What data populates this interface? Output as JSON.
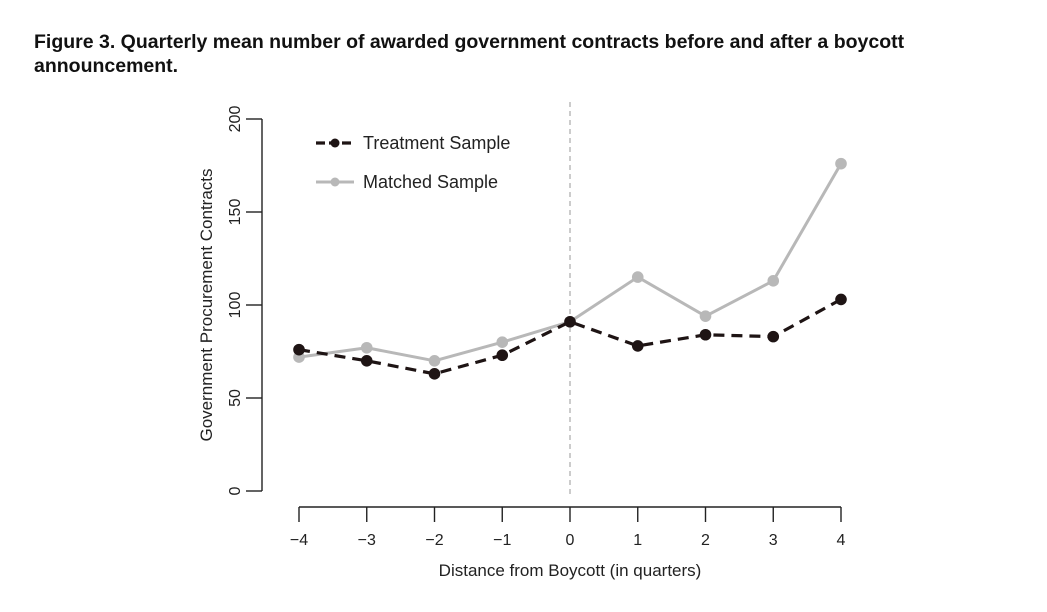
{
  "figure": {
    "title": "Figure 3.  Quarterly mean number of awarded government contracts before and after a boycott announcement."
  },
  "chart_data": {
    "type": "line",
    "title": "Figure 3.  Quarterly mean number of awarded government contracts before and after a boycott announcement.",
    "xlabel": "Distance from Boycott (in quarters)",
    "ylabel": "Government Procurement Contracts",
    "x": [
      -4,
      -3,
      -2,
      -1,
      0,
      1,
      2,
      3,
      4
    ],
    "x_tick_labels": [
      "−4",
      "−3",
      "−2",
      "−1",
      "0",
      "1",
      "2",
      "3",
      "4"
    ],
    "y_ticks": [
      0,
      50,
      100,
      150,
      200
    ],
    "y_tick_labels": [
      "0",
      "50",
      "100",
      "150",
      "200"
    ],
    "xlim": [
      -4,
      4
    ],
    "ylim": [
      0,
      200
    ],
    "grid": false,
    "vertical_reference_line_x": 0,
    "legend_position": "top-left",
    "series": [
      {
        "name": "Treatment Sample",
        "values": [
          76,
          70,
          63,
          73,
          91,
          78,
          84,
          83,
          103
        ],
        "color": "#1e1414",
        "line_style": "dashed"
      },
      {
        "name": "Matched Sample",
        "values": [
          72,
          77,
          70,
          80,
          91,
          115,
          94,
          113,
          176
        ],
        "color": "#b8b8b8",
        "line_style": "solid"
      }
    ]
  }
}
